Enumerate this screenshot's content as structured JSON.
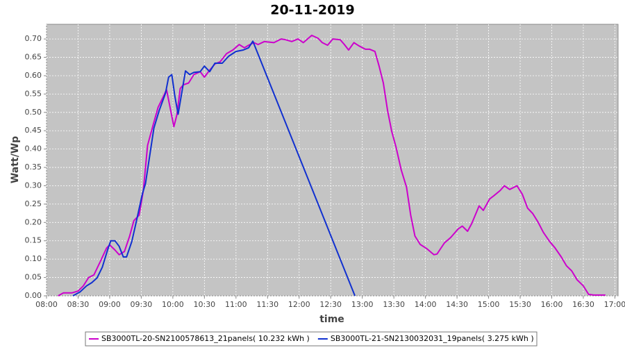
{
  "chart_data": {
    "type": "line",
    "title": "20-11-2019",
    "x_label": "time",
    "y_label": "Watt/Wp",
    "grid": true,
    "legend": "bottom",
    "xlim": [
      480,
      1023
    ],
    "ylim": [
      0,
      0.74
    ],
    "xticks": [
      {
        "value": 480,
        "label": "08:00"
      },
      {
        "value": 510,
        "label": "08:30"
      },
      {
        "value": 540,
        "label": "09:00"
      },
      {
        "value": 570,
        "label": "09:30"
      },
      {
        "value": 600,
        "label": "10:00"
      },
      {
        "value": 630,
        "label": "10:30"
      },
      {
        "value": 660,
        "label": "11:00"
      },
      {
        "value": 690,
        "label": "11:30"
      },
      {
        "value": 720,
        "label": "12:00"
      },
      {
        "value": 750,
        "label": "12:30"
      },
      {
        "value": 780,
        "label": "13:00"
      },
      {
        "value": 810,
        "label": "13:30"
      },
      {
        "value": 840,
        "label": "14:00"
      },
      {
        "value": 870,
        "label": "14:30"
      },
      {
        "value": 900,
        "label": "15:00"
      },
      {
        "value": 930,
        "label": "15:30"
      },
      {
        "value": 960,
        "label": "16:00"
      },
      {
        "value": 990,
        "label": "16:30"
      },
      {
        "value": 1020,
        "label": "17:00"
      }
    ],
    "yticks": [
      {
        "value": 0,
        "label": "0.00"
      },
      0.05,
      {
        "value": 0.1,
        "label": "0.10"
      },
      0.15,
      {
        "value": 0.2,
        "label": "0.20"
      },
      0.25,
      {
        "value": 0.3,
        "label": "0.30"
      },
      0.35,
      {
        "value": 0.4,
        "label": "0.40"
      },
      0.45,
      {
        "value": 0.5,
        "label": "0.50"
      },
      0.55,
      {
        "value": 0.6,
        "label": "0.60"
      },
      0.65,
      {
        "value": 0.7,
        "label": "0.70"
      }
    ],
    "series": [
      {
        "name": "SB3000TL-20-SN2100578613_21panels( 10.232 kWh )",
        "color": "#cc00cc",
        "x": [
          491,
          496,
          504,
          510,
          515,
          520,
          525,
          531,
          537,
          540,
          545,
          549,
          554,
          559,
          563,
          568,
          572,
          576,
          581,
          586,
          591,
          594,
          598,
          601,
          604,
          607,
          610,
          615,
          620,
          626,
          630,
          635,
          640,
          645,
          651,
          657,
          663,
          668,
          672,
          677,
          681,
          687,
          696,
          703,
          707,
          713,
          719,
          724,
          732,
          738,
          742,
          747,
          752,
          759,
          763,
          767,
          772,
          777,
          783,
          787,
          792,
          796,
          800,
          804,
          808,
          812,
          817,
          822,
          826,
          830,
          835,
          841,
          848,
          851,
          858,
          864,
          871,
          875,
          880,
          884,
          891,
          895,
          901,
          905,
          911,
          915,
          920,
          927,
          932,
          937,
          942,
          947,
          952,
          958,
          963,
          969,
          974,
          979,
          984,
          990,
          995,
          1000,
          1011
        ],
        "values": [
          0,
          0.008,
          0.008,
          0.013,
          0.027,
          0.05,
          0.057,
          0.093,
          0.13,
          0.139,
          0.125,
          0.112,
          0.121,
          0.163,
          0.205,
          0.22,
          0.287,
          0.41,
          0.463,
          0.514,
          0.543,
          0.562,
          0.505,
          0.461,
          0.495,
          0.565,
          0.575,
          0.58,
          0.603,
          0.611,
          0.596,
          0.615,
          0.632,
          0.638,
          0.66,
          0.67,
          0.685,
          0.676,
          0.683,
          0.69,
          0.685,
          0.693,
          0.69,
          0.7,
          0.698,
          0.693,
          0.7,
          0.69,
          0.71,
          0.702,
          0.69,
          0.683,
          0.7,
          0.698,
          0.685,
          0.67,
          0.69,
          0.681,
          0.672,
          0.672,
          0.666,
          0.626,
          0.58,
          0.505,
          0.448,
          0.406,
          0.343,
          0.296,
          0.22,
          0.163,
          0.14,
          0.129,
          0.112,
          0.114,
          0.144,
          0.159,
          0.182,
          0.19,
          0.176,
          0.197,
          0.245,
          0.233,
          0.264,
          0.273,
          0.287,
          0.3,
          0.29,
          0.3,
          0.277,
          0.239,
          0.224,
          0.201,
          0.173,
          0.148,
          0.131,
          0.106,
          0.082,
          0.068,
          0.044,
          0.027,
          0.004,
          0.002,
          0.002
        ]
      },
      {
        "name": "SB3000TL-21-SN2130032031_19panels( 3.275 kWh )",
        "color": "#1030d0",
        "x": [
          505,
          512,
          518,
          523,
          528,
          533,
          538,
          541,
          545,
          549,
          553,
          556,
          561,
          566,
          571,
          574,
          578,
          582,
          587,
          593,
          596,
          599,
          602,
          605,
          609,
          612,
          616,
          620,
          626,
          630,
          635,
          640,
          647,
          653,
          660,
          667,
          672,
          676,
          773
        ],
        "values": [
          0,
          0.011,
          0.027,
          0.036,
          0.049,
          0.078,
          0.125,
          0.15,
          0.15,
          0.135,
          0.106,
          0.106,
          0.148,
          0.211,
          0.277,
          0.306,
          0.381,
          0.457,
          0.505,
          0.552,
          0.596,
          0.603,
          0.543,
          0.495,
          0.562,
          0.613,
          0.603,
          0.609,
          0.611,
          0.626,
          0.611,
          0.634,
          0.634,
          0.653,
          0.666,
          0.67,
          0.676,
          0.694,
          0
        ]
      }
    ]
  }
}
